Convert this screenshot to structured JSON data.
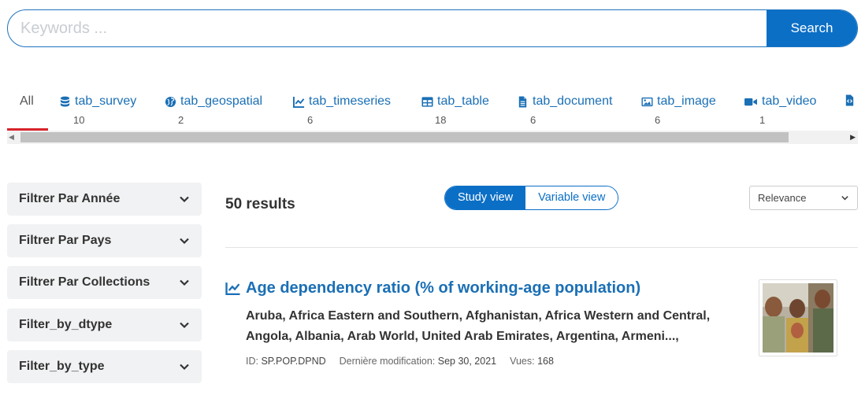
{
  "search": {
    "placeholder": "Keywords ...",
    "button_label": "Search"
  },
  "tabs": [
    {
      "label": "All",
      "count": "",
      "icon": "none"
    },
    {
      "label": "tab_survey",
      "count": "10",
      "icon": "database-icon"
    },
    {
      "label": "tab_geospatial",
      "count": "2",
      "icon": "globe-icon"
    },
    {
      "label": "tab_timeseries",
      "count": "6",
      "icon": "line-chart-icon"
    },
    {
      "label": "tab_table",
      "count": "18",
      "icon": "table-icon"
    },
    {
      "label": "tab_document",
      "count": "6",
      "icon": "document-icon"
    },
    {
      "label": "tab_image",
      "count": "6",
      "icon": "image-icon"
    },
    {
      "label": "tab_video",
      "count": "1",
      "icon": "video-icon"
    }
  ],
  "filters": [
    {
      "label": "Filtrer Par Année"
    },
    {
      "label": "Filtrer Par Pays"
    },
    {
      "label": "Filtrer Par Collections"
    },
    {
      "label": "Filter_by_dtype"
    },
    {
      "label": "Filter_by_type"
    }
  ],
  "results": {
    "count_text": "50 results",
    "views": {
      "study": "Study view",
      "variable": "Variable view",
      "active": "study"
    },
    "sort": {
      "selected": "Relevance"
    },
    "items": [
      {
        "title": "Age dependency ratio (% of working-age population)",
        "countries": "Aruba, Africa Eastern and Southern, Afghanistan, Africa Western and Central, Angola, Albania, Arab World, United Arab Emirates, Argentina, Armeni...,",
        "id_label": "ID:",
        "id_value": "SP.POP.DPND",
        "modified_label": "Dernière modification:",
        "modified_value": "Sep 30, 2021",
        "views_label": "Vues:",
        "views_value": "168"
      }
    ]
  },
  "colors": {
    "accent": "#0b6fc6",
    "link": "#1a6fb5",
    "active_tab_underline": "#d8232a"
  }
}
